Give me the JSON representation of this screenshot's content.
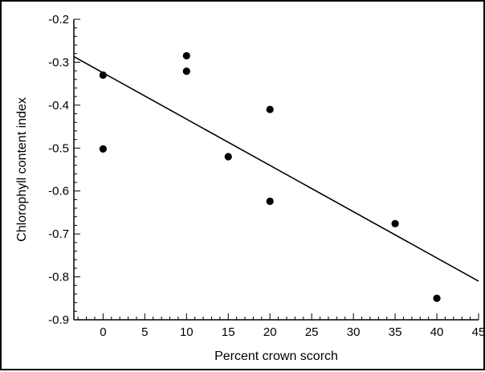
{
  "chart_data": {
    "type": "scatter",
    "title": "",
    "xlabel": "Percent crown scorch",
    "ylabel": "Chlorophyll content index",
    "xlim": [
      -3.5,
      45
    ],
    "ylim": [
      -0.9,
      -0.2
    ],
    "xticks": [
      "0",
      "5",
      "10",
      "15",
      "20",
      "25",
      "30",
      "35",
      "40",
      "45"
    ],
    "yticks": [
      "-0.2",
      "-0.3",
      "-0.4",
      "-0.5",
      "-0.6",
      "-0.7",
      "-0.8",
      "-0.9"
    ],
    "grid": false,
    "legend": "none",
    "points": [
      {
        "x": 0,
        "y": -0.33
      },
      {
        "x": 0,
        "y": -0.502
      },
      {
        "x": 10,
        "y": -0.285
      },
      {
        "x": 10,
        "y": -0.321
      },
      {
        "x": 15,
        "y": -0.52
      },
      {
        "x": 20,
        "y": -0.41
      },
      {
        "x": 20,
        "y": -0.624
      },
      {
        "x": 35,
        "y": -0.676
      },
      {
        "x": 40,
        "y": -0.85
      }
    ],
    "trendline": {
      "type": "linear",
      "points": [
        {
          "x": -3.5,
          "y": -0.287
        },
        {
          "x": 45,
          "y": -0.81
        }
      ]
    },
    "colors": {
      "points": "#000000",
      "line": "#000000",
      "axes": "#000000"
    }
  }
}
